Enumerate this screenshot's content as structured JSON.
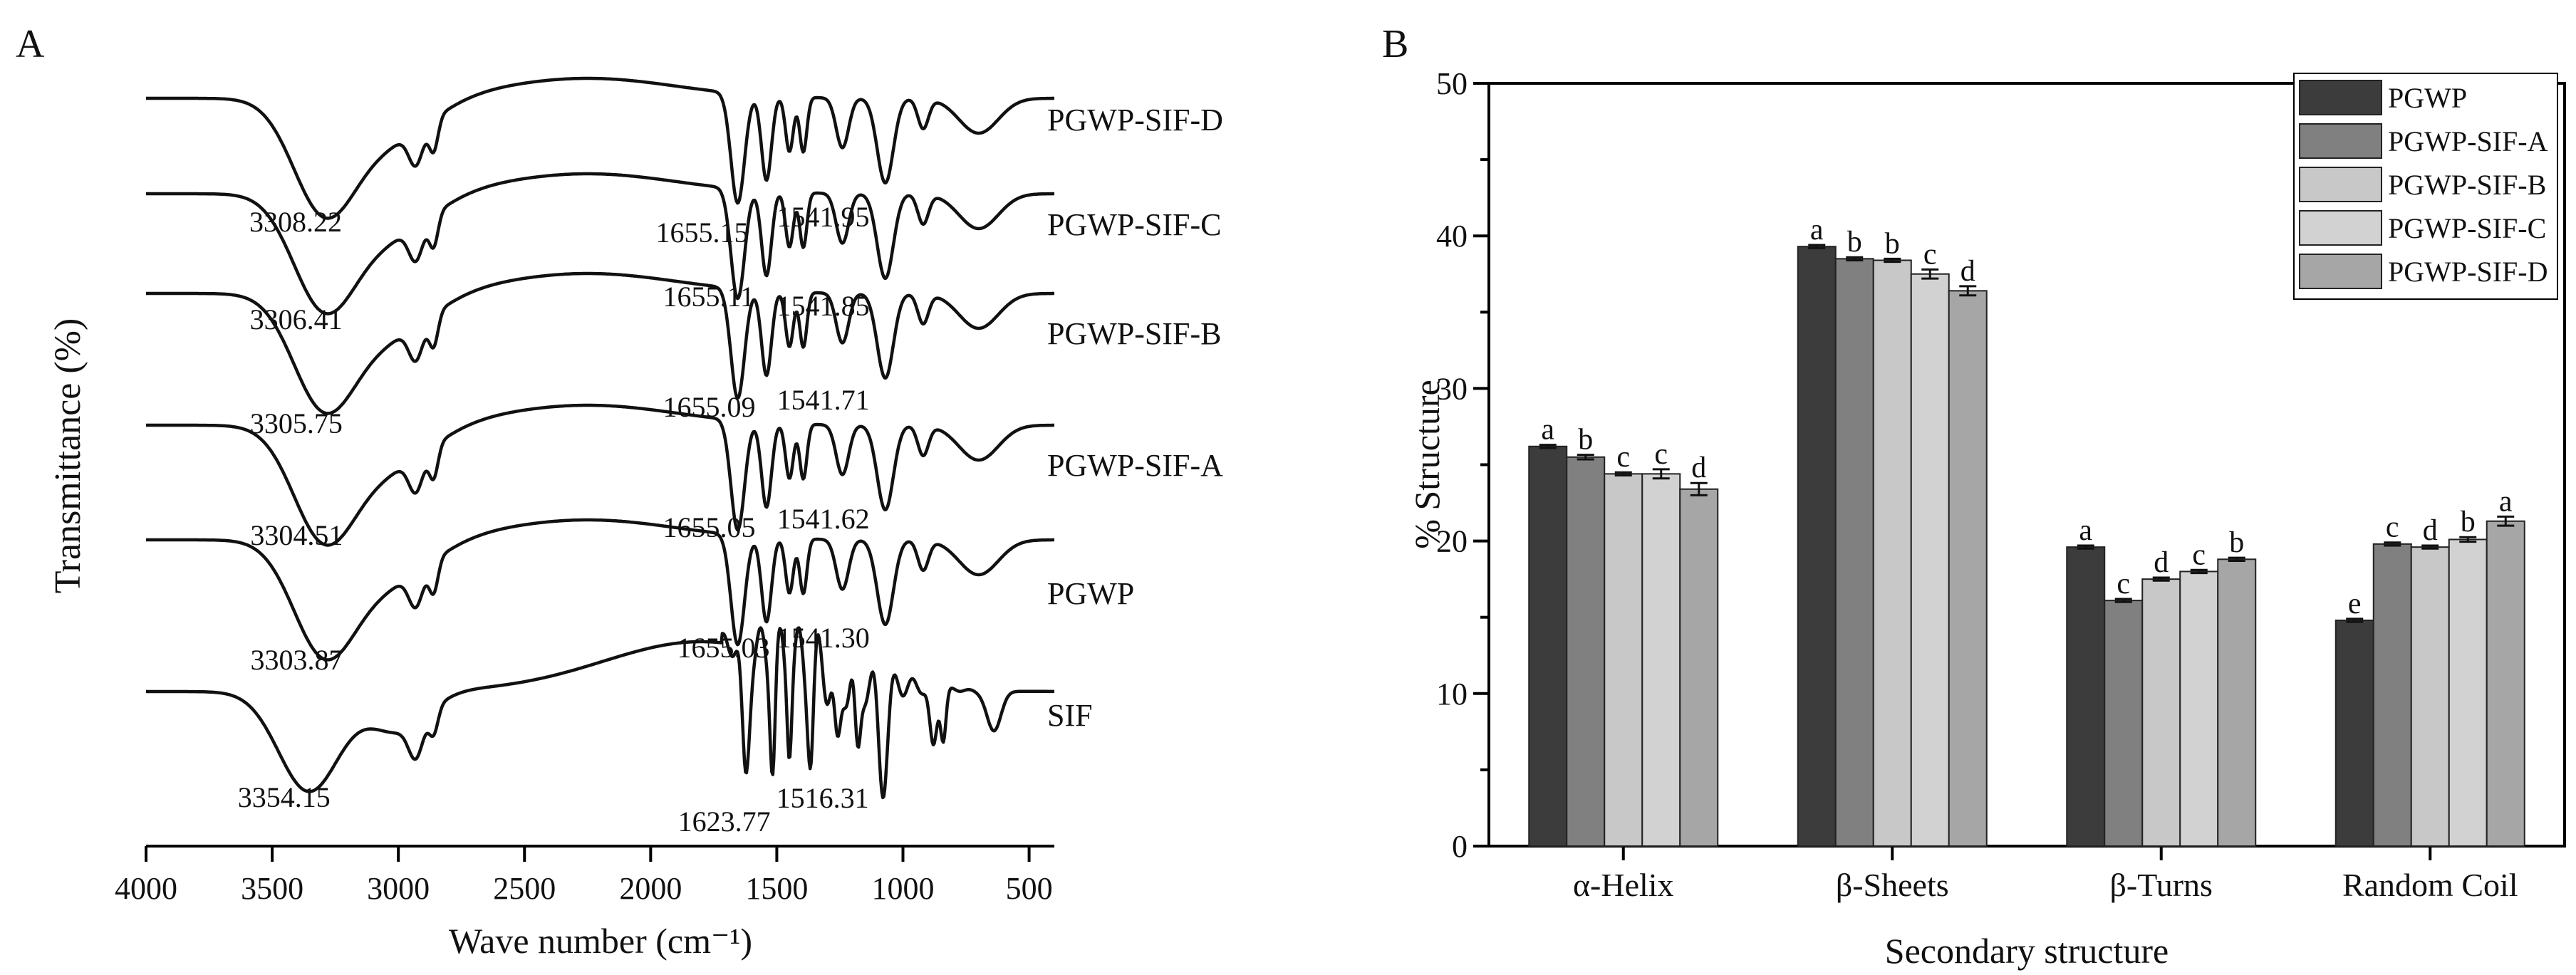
{
  "chart_data": [
    {
      "panel": "A",
      "type": "line",
      "xlabel": "Wave number (cm⁻¹)",
      "ylabel": "Transmittance (%)",
      "xlim": [
        4000,
        400
      ],
      "x_ticks": [
        4000,
        3500,
        3000,
        2500,
        2000,
        1500,
        1000,
        500
      ],
      "series": [
        {
          "name": "PGWP-SIF-D",
          "peaks": [
            {
              "x": 3308.22,
              "label": "3308.22"
            },
            {
              "x": 1655.15,
              "label": "1655.15"
            },
            {
              "x": 1541.95,
              "label": "1541.95"
            }
          ]
        },
        {
          "name": "PGWP-SIF-C",
          "peaks": [
            {
              "x": 3306.41,
              "label": "3306.41"
            },
            {
              "x": 1655.11,
              "label": "1655.11"
            },
            {
              "x": 1541.85,
              "label": "1541.85"
            }
          ]
        },
        {
          "name": "PGWP-SIF-B",
          "peaks": [
            {
              "x": 3305.75,
              "label": "3305.75"
            },
            {
              "x": 1655.09,
              "label": "1655.09"
            },
            {
              "x": 1541.71,
              "label": "1541.71"
            }
          ]
        },
        {
          "name": "PGWP-SIF-A",
          "peaks": [
            {
              "x": 3304.51,
              "label": "3304.51"
            },
            {
              "x": 1655.05,
              "label": "1655.05"
            },
            {
              "x": 1541.62,
              "label": "1541.62"
            }
          ]
        },
        {
          "name": "PGWP",
          "peaks": [
            {
              "x": 3303.87,
              "label": "3303.87"
            },
            {
              "x": 1655.03,
              "label": "1655.03"
            },
            {
              "x": 1541.3,
              "label": "1541.30"
            }
          ]
        },
        {
          "name": "SIF",
          "peaks": [
            {
              "x": 3354.15,
              "label": "3354.15"
            },
            {
              "x": 1623.77,
              "label": "1623.77"
            },
            {
              "x": 1516.31,
              "label": "1516.31"
            }
          ]
        }
      ]
    },
    {
      "panel": "B",
      "type": "bar",
      "xlabel": "Secondary structure",
      "ylabel": "% Structure",
      "ylim": [
        0,
        50
      ],
      "y_ticks": [
        0,
        10,
        20,
        30,
        40,
        50
      ],
      "categories": [
        "α-Helix",
        "β-Sheets",
        "β-Turns",
        "Random Coil"
      ],
      "series": [
        {
          "name": "PGWP",
          "color": "#3c3c3c",
          "values": [
            26.2,
            39.3,
            19.6,
            14.8
          ],
          "errors": [
            0.1,
            0.1,
            0.1,
            0.1
          ],
          "letters": [
            "a",
            "a",
            "a",
            "e"
          ]
        },
        {
          "name": "PGWP-SIF-A",
          "color": "#808080",
          "values": [
            25.5,
            38.5,
            16.1,
            19.8
          ],
          "errors": [
            0.15,
            0.1,
            0.1,
            0.1
          ],
          "letters": [
            "b",
            "b",
            "c",
            "c"
          ]
        },
        {
          "name": "PGWP-SIF-B",
          "color": "#c8c8c8",
          "values": [
            24.4,
            38.4,
            17.5,
            19.6
          ],
          "errors": [
            0.1,
            0.1,
            0.1,
            0.1
          ],
          "letters": [
            "c",
            "b",
            "d",
            "d"
          ]
        },
        {
          "name": "PGWP-SIF-C",
          "color": "#d2d2d2",
          "values": [
            24.4,
            37.5,
            18.0,
            20.1
          ],
          "errors": [
            0.3,
            0.3,
            0.1,
            0.15
          ],
          "letters": [
            "c",
            "c",
            "c",
            "b"
          ]
        },
        {
          "name": "PGWP-SIF-D",
          "color": "#a6a6a6",
          "values": [
            23.4,
            36.4,
            18.8,
            21.3
          ],
          "errors": [
            0.4,
            0.3,
            0.1,
            0.3
          ],
          "letters": [
            "d",
            "d",
            "b",
            "a"
          ]
        }
      ]
    }
  ],
  "panel_a_label": "A",
  "panel_b_label": "B"
}
